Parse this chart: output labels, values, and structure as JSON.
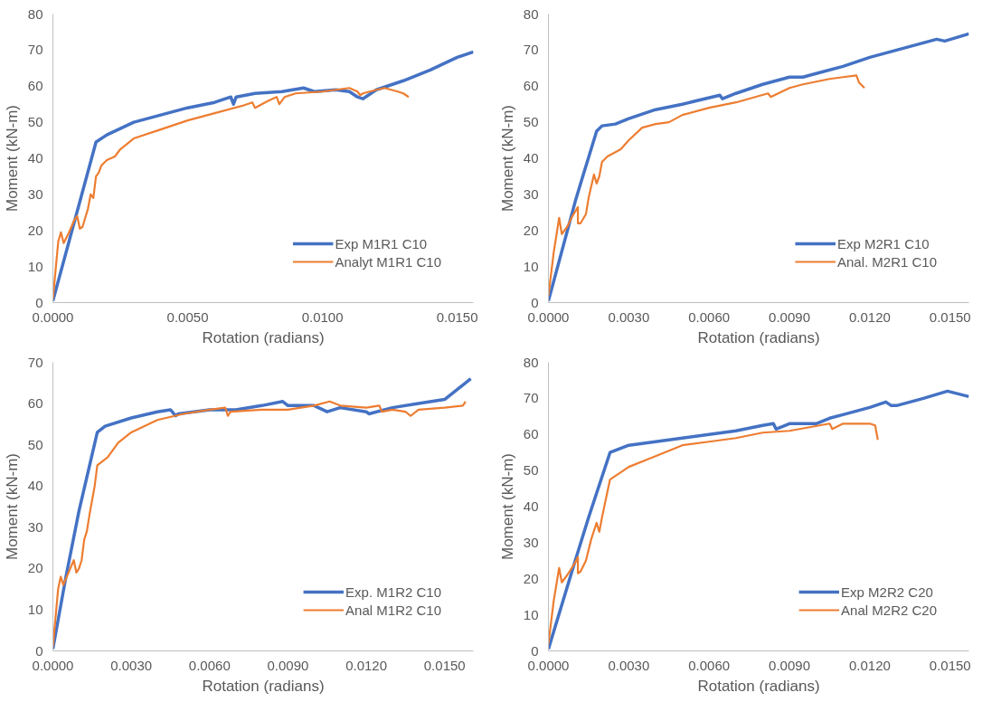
{
  "chart_data": [
    {
      "type": "line",
      "xlabel": "Rotation (radians)",
      "ylabel": "Moment (kN-m)",
      "xlim": [
        0,
        0.0156
      ],
      "ylim": [
        0,
        80
      ],
      "xticks": [
        {
          "value": 0,
          "label": "0.0000"
        },
        {
          "value": 0.005,
          "label": "0.0050"
        },
        {
          "value": 0.01,
          "label": "0.0100"
        },
        {
          "value": 0.015,
          "label": "0.0150"
        }
      ],
      "yticks": [
        0,
        10,
        20,
        30,
        40,
        50,
        60,
        70,
        80
      ],
      "grid": false,
      "legend": "bottom right",
      "series": [
        {
          "name": "Exp M1R1 C10",
          "color": "#4472c4",
          "x": [
            0,
            0.0016,
            0.002,
            0.003,
            0.004,
            0.005,
            0.006,
            0.0066,
            0.0067,
            0.0068,
            0.0075,
            0.0085,
            0.0093,
            0.0097,
            0.0105,
            0.011,
            0.0113,
            0.0115,
            0.012,
            0.013,
            0.014,
            0.015,
            0.0156
          ],
          "values": [
            0.5,
            44.5,
            46.5,
            50,
            52,
            54,
            55.5,
            57,
            55,
            57,
            58,
            58.5,
            59.5,
            58.5,
            59,
            58.5,
            57,
            56.5,
            59,
            61.5,
            64.5,
            68,
            69.5
          ]
        },
        {
          "name": "Analyt M1R1 C10",
          "color": "#ed7d31",
          "x": [
            0,
            0.0002,
            0.0003,
            0.0004,
            0.0006,
            0.0008,
            0.0009,
            0.001,
            0.0011,
            0.0012,
            0.0013,
            0.0014,
            0.0015,
            0.0016,
            0.0017,
            0.0018,
            0.002,
            0.0023,
            0.0025,
            0.003,
            0.004,
            0.005,
            0.006,
            0.007,
            0.0074,
            0.0075,
            0.008,
            0.0083,
            0.0084,
            0.0086,
            0.009,
            0.01,
            0.011,
            0.0113,
            0.0114,
            0.0115,
            0.012,
            0.0123,
            0.0128,
            0.013,
            0.0132
          ],
          "values": [
            1,
            17,
            19.5,
            16.5,
            19.5,
            23,
            24,
            20.5,
            21,
            23.5,
            26,
            30,
            29,
            35,
            36,
            38,
            39.5,
            40.5,
            42.5,
            45.5,
            48,
            50.5,
            52.5,
            54.5,
            55.5,
            54,
            56,
            57,
            55,
            57,
            58,
            58.5,
            59.5,
            58.5,
            57.5,
            58,
            59,
            59.5,
            58.5,
            58,
            57
          ]
        }
      ]
    },
    {
      "type": "line",
      "xlabel": "Rotation (radians)",
      "ylabel": "Moment (kN-m)",
      "xlim": [
        0,
        0.0157
      ],
      "ylim": [
        0,
        80
      ],
      "xticks": [
        {
          "value": 0,
          "label": "0.0000"
        },
        {
          "value": 0.003,
          "label": "0.0030"
        },
        {
          "value": 0.006,
          "label": "0.0060"
        },
        {
          "value": 0.009,
          "label": "0.0090"
        },
        {
          "value": 0.012,
          "label": "0.0120"
        },
        {
          "value": 0.015,
          "label": "0.0150"
        }
      ],
      "yticks": [
        0,
        10,
        20,
        30,
        40,
        50,
        60,
        70,
        80
      ],
      "grid": false,
      "legend": "bottom right",
      "series": [
        {
          "name": "Exp M2R1 C10",
          "color": "#4472c4",
          "x": [
            0,
            0.001,
            0.0012,
            0.0018,
            0.002,
            0.0025,
            0.003,
            0.004,
            0.005,
            0.0064,
            0.0065,
            0.007,
            0.008,
            0.009,
            0.0095,
            0.01,
            0.011,
            0.012,
            0.0125,
            0.013,
            0.0135,
            0.0145,
            0.0148,
            0.0157
          ],
          "values": [
            0.5,
            28,
            33,
            47.5,
            49,
            49.5,
            51,
            53.5,
            55,
            57.5,
            56.5,
            58,
            60.5,
            62.5,
            62.5,
            63.5,
            65.5,
            68,
            69,
            70,
            71,
            73,
            72.5,
            74.5
          ]
        },
        {
          "name": "Anal. M2R1 C10",
          "color": "#ed7d31",
          "x": [
            0,
            0.0002,
            0.0004,
            0.0005,
            0.0007,
            0.0009,
            0.0011,
            0.0011,
            0.0012,
            0.0014,
            0.0015,
            0.0017,
            0.0018,
            0.0019,
            0.002,
            0.0022,
            0.0027,
            0.003,
            0.0035,
            0.004,
            0.0045,
            0.005,
            0.006,
            0.007,
            0.0082,
            0.0083,
            0.009,
            0.0095,
            0.0105,
            0.011,
            0.0115,
            0.0116,
            0.0118
          ],
          "values": [
            2,
            14,
            23.5,
            19,
            21,
            24,
            26.5,
            22,
            22,
            24.5,
            29,
            35.5,
            33,
            35,
            39,
            40.5,
            42.5,
            45,
            48.5,
            49.5,
            50,
            52,
            54,
            55.5,
            58,
            57,
            59.5,
            60.5,
            62,
            62.5,
            63,
            61,
            59.5
          ]
        }
      ]
    },
    {
      "type": "line",
      "xlabel": "Rotation (radians)",
      "ylabel": "Moment (kN-m)",
      "xlim": [
        0,
        0.0161
      ],
      "ylim": [
        0,
        70
      ],
      "xticks": [
        {
          "value": 0,
          "label": "0.0000"
        },
        {
          "value": 0.003,
          "label": "0.0030"
        },
        {
          "value": 0.006,
          "label": "0.0060"
        },
        {
          "value": 0.009,
          "label": "0.0090"
        },
        {
          "value": 0.012,
          "label": "0.0120"
        },
        {
          "value": 0.015,
          "label": "0.0150"
        }
      ],
      "yticks": [
        0,
        10,
        20,
        30,
        40,
        50,
        60,
        70
      ],
      "grid": false,
      "legend": "bottom right",
      "series": [
        {
          "name": "Exp. M1R2 C10",
          "color": "#4472c4",
          "x": [
            0,
            0.0005,
            0.001,
            0.0017,
            0.002,
            0.003,
            0.004,
            0.0045,
            0.0047,
            0.0048,
            0.006,
            0.007,
            0.008,
            0.0088,
            0.009,
            0.01,
            0.0105,
            0.011,
            0.012,
            0.0121,
            0.013,
            0.014,
            0.015,
            0.0155,
            0.016
          ],
          "values": [
            0.5,
            18,
            34,
            53,
            54.5,
            56.5,
            58,
            58.5,
            57,
            57.5,
            58.5,
            58.5,
            59.5,
            60.5,
            59.5,
            59.5,
            58,
            59,
            58,
            57.5,
            59,
            60,
            61,
            63.5,
            66
          ]
        },
        {
          "name": "Anal M1R2 C10",
          "color": "#ed7d31",
          "x": [
            0,
            0.0002,
            0.0003,
            0.0004,
            0.0006,
            0.0008,
            0.0009,
            0.001,
            0.0011,
            0.0012,
            0.0013,
            0.0014,
            0.0016,
            0.0017,
            0.0021,
            0.0025,
            0.003,
            0.004,
            0.005,
            0.006,
            0.0066,
            0.0067,
            0.0068,
            0.008,
            0.009,
            0.01,
            0.0106,
            0.011,
            0.012,
            0.0125,
            0.0126,
            0.013,
            0.0135,
            0.0137,
            0.014,
            0.015,
            0.0157,
            0.0158
          ],
          "values": [
            1,
            15,
            18,
            16,
            19,
            22,
            19,
            20,
            22,
            27,
            29,
            33,
            40,
            45,
            47,
            50.5,
            53,
            56,
            57.5,
            58.5,
            59,
            57,
            58,
            58.5,
            58.5,
            59.5,
            60.5,
            59.5,
            59,
            59.5,
            58,
            58.5,
            58,
            57,
            58.5,
            59,
            59.5,
            60.5
          ]
        }
      ]
    },
    {
      "type": "line",
      "xlabel": "Rotation (radians)",
      "ylabel": "Moment (kN-m)",
      "xlim": [
        0,
        0.0157
      ],
      "ylim": [
        0,
        80
      ],
      "xticks": [
        {
          "value": 0,
          "label": "0.0000"
        },
        {
          "value": 0.003,
          "label": "0.0030"
        },
        {
          "value": 0.006,
          "label": "0.0060"
        },
        {
          "value": 0.009,
          "label": "0.0090"
        },
        {
          "value": 0.012,
          "label": "0.0120"
        },
        {
          "value": 0.015,
          "label": "0.0150"
        }
      ],
      "yticks": [
        0,
        10,
        20,
        30,
        40,
        50,
        60,
        70,
        80
      ],
      "grid": false,
      "legend": "bottom right",
      "series": [
        {
          "name": "Exp M2R2 C20",
          "color": "#4472c4",
          "x": [
            0,
            0.001,
            0.0015,
            0.0023,
            0.003,
            0.004,
            0.005,
            0.006,
            0.007,
            0.008,
            0.0084,
            0.0085,
            0.009,
            0.0095,
            0.01,
            0.0105,
            0.011,
            0.012,
            0.0126,
            0.0128,
            0.013,
            0.014,
            0.0149,
            0.0157
          ],
          "values": [
            0.5,
            25,
            37,
            55,
            57,
            58,
            59,
            60,
            61,
            62.5,
            63,
            61.5,
            63,
            63,
            63,
            64.5,
            65.5,
            67.5,
            69,
            68,
            68,
            70,
            72,
            70.5
          ]
        },
        {
          "name": "Anal M2R2 C20",
          "color": "#ed7d31",
          "x": [
            0,
            0.0002,
            0.0004,
            0.0005,
            0.0007,
            0.001,
            0.0011,
            0.0011,
            0.0012,
            0.0014,
            0.0016,
            0.0018,
            0.0019,
            0.002,
            0.0023,
            0.0027,
            0.003,
            0.004,
            0.005,
            0.006,
            0.007,
            0.008,
            0.009,
            0.0105,
            0.0106,
            0.011,
            0.012,
            0.0122,
            0.0123
          ],
          "values": [
            2,
            14,
            23,
            19,
            21,
            24.5,
            26,
            21.5,
            22,
            25,
            31,
            35.5,
            33,
            37,
            47.5,
            49.5,
            51,
            54,
            57,
            58,
            59,
            60.5,
            61,
            63,
            61.5,
            63,
            63,
            62.5,
            58.5
          ]
        }
      ]
    }
  ]
}
